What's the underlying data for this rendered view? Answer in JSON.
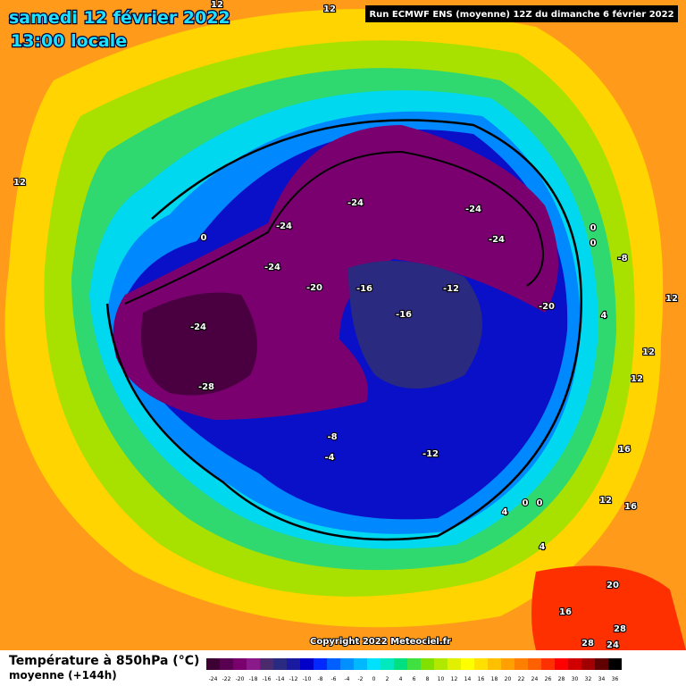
{
  "header": {
    "date": "samedi 12 février 2022",
    "time": "13:00 locale",
    "run": "Run ECMWF ENS (moyenne) 12Z du dimanche 6 février 2022"
  },
  "map": {
    "contour_labels": [
      -24,
      -24,
      -24,
      -24,
      -24,
      -20,
      -16,
      -12,
      -16,
      -20,
      -24,
      -28,
      -8,
      -4,
      -12,
      0,
      0,
      0,
      -8,
      4,
      12,
      12,
      12,
      16,
      12,
      16,
      4,
      0,
      0,
      4,
      20,
      16,
      28,
      28,
      24,
      12,
      12,
      12
    ]
  },
  "footer": {
    "title": "Température à 850hPa (°C)",
    "subtitle": "moyenne  (+144h)",
    "copyright": "Copyright 2022 Meteociel.fr"
  },
  "legend": {
    "values": [
      -24,
      -22,
      -20,
      -18,
      -16,
      -14,
      -12,
      -10,
      -8,
      -6,
      -4,
      -2,
      0,
      2,
      4,
      6,
      8,
      10,
      12,
      14,
      16,
      18,
      20,
      22,
      24,
      26,
      28,
      30,
      32,
      34,
      36
    ],
    "colors": [
      "#3d0033",
      "#5a0050",
      "#7a006e",
      "#8a1a8a",
      "#4b2a6e",
      "#2a2a80",
      "#1a1aa0",
      "#0000c8",
      "#0028ff",
      "#0060ff",
      "#0090ff",
      "#00b8ff",
      "#00e0ff",
      "#00e8c0",
      "#00e080",
      "#40e040",
      "#80e000",
      "#b0e800",
      "#e0f000",
      "#ffff00",
      "#ffe000",
      "#ffc000",
      "#ffa000",
      "#ff8000",
      "#ff6000",
      "#ff3000",
      "#ff0000",
      "#d00000",
      "#a00000",
      "#600000",
      "#000000"
    ]
  }
}
